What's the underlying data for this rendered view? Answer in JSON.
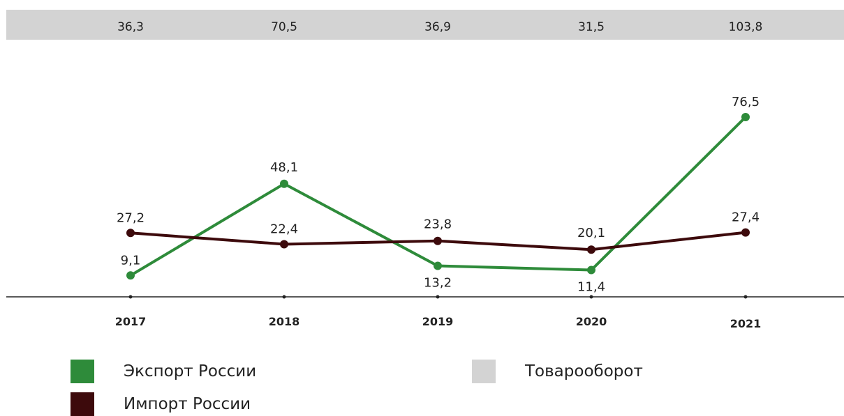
{
  "chart_data": {
    "type": "line",
    "categories": [
      "2017",
      "2018",
      "2019",
      "2020",
      "2021"
    ],
    "series": [
      {
        "name": "Экспорт России",
        "values": [
          9.1,
          48.1,
          13.2,
          11.4,
          76.5
        ],
        "labels": [
          "9,1",
          "48,1",
          "13,2",
          "11,4",
          "76,5"
        ],
        "color": "#2e8b3a"
      },
      {
        "name": "Импорт России",
        "values": [
          27.2,
          22.4,
          23.8,
          20.1,
          27.4
        ],
        "labels": [
          "27,2",
          "22,4",
          "23,8",
          "20,1",
          "27,4"
        ],
        "color": "#3d0a0c"
      }
    ],
    "turnover": {
      "name": "Товарооборот",
      "values": [
        "36,3",
        "70,5",
        "36,9",
        "31,5",
        "103,8"
      ],
      "color": "#d3d3d3"
    },
    "legend_position": "bottom",
    "grid": false
  }
}
